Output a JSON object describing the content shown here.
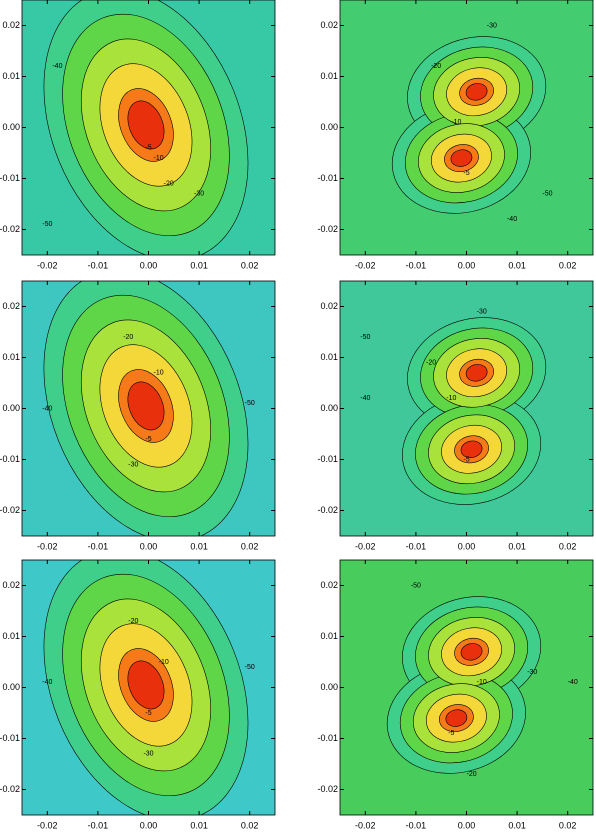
{
  "chart_data": [
    {
      "type": "contour",
      "xlim": [
        -0.025,
        0.025
      ],
      "ylim": [
        -0.025,
        0.025
      ],
      "xticks": [
        -0.02,
        -0.01,
        {
          "value": 0,
          "label": "0.00"
        },
        0.01,
        0.02
      ],
      "yticks": [
        -0.02,
        -0.01,
        {
          "value": 0,
          "label": "0.00"
        },
        0.01,
        0.02
      ],
      "levels": [
        -50,
        -40,
        -30,
        -20,
        -10,
        -5
      ],
      "colors": [
        "#3fcf8a",
        "#5fd648",
        "#a8e23a",
        "#f4d83a",
        "#f77a18",
        "#e8300c"
      ],
      "background": "#37c9a6",
      "peaks": [
        {
          "x": -0.0005,
          "y": 0.0005
        }
      ],
      "contour_labels": [
        {
          "x": 0,
          "y": -0.004,
          "value": -5
        },
        {
          "x": 0.002,
          "y": -0.006,
          "value": -10
        },
        {
          "x": 0.004,
          "y": -0.011,
          "value": -20
        },
        {
          "x": 0.01,
          "y": -0.013,
          "value": -30
        },
        {
          "x": -0.018,
          "y": 0.012,
          "value": -40
        },
        {
          "x": -0.02,
          "y": -0.019,
          "value": -50
        }
      ]
    },
    {
      "type": "contour",
      "xlim": [
        -0.025,
        0.025
      ],
      "ylim": [
        -0.025,
        0.025
      ],
      "xticks": [
        -0.02,
        -0.01,
        {
          "value": 0,
          "label": "0.00"
        },
        0.01,
        0.02
      ],
      "yticks": [
        -0.02,
        -0.01,
        {
          "value": 0,
          "label": "0.00"
        },
        0.01,
        0.02
      ],
      "levels": [
        -50,
        -40,
        -30,
        -20,
        -10,
        -5
      ],
      "colors": [
        "#3fcf8a",
        "#5fd648",
        "#a8e23a",
        "#f4d83a",
        "#f77a18",
        "#e8300c"
      ],
      "background": "#44cc70",
      "peaks": [
        {
          "x": 0.002,
          "y": 0.007
        },
        {
          "x": -0.001,
          "y": -0.006
        }
      ],
      "contour_labels": [
        {
          "x": 0,
          "y": -0.009,
          "value": -5
        },
        {
          "x": -0.002,
          "y": 0.001,
          "value": -10
        },
        {
          "x": -0.006,
          "y": 0.012,
          "value": -20
        },
        {
          "x": 0.005,
          "y": 0.02,
          "value": -30
        },
        {
          "x": 0.009,
          "y": -0.018,
          "value": -40
        },
        {
          "x": 0.016,
          "y": -0.013,
          "value": -50
        }
      ]
    },
    {
      "type": "contour",
      "xlim": [
        -0.025,
        0.025
      ],
      "ylim": [
        -0.025,
        0.025
      ],
      "xticks": [
        -0.02,
        -0.01,
        {
          "value": 0,
          "label": "0.00"
        },
        0.01,
        0.02
      ],
      "yticks": [
        -0.02,
        -0.01,
        {
          "value": 0,
          "label": "0.00"
        },
        0.01,
        0.02
      ],
      "levels": [
        -50,
        -40,
        -30,
        -20,
        -10,
        -5
      ],
      "colors": [
        "#3fcf8a",
        "#5fd648",
        "#a8e23a",
        "#f4d83a",
        "#f77a18",
        "#e8300c"
      ],
      "background": "#3ec6c0",
      "peaks": [
        {
          "x": -0.0005,
          "y": 0.0005
        }
      ],
      "contour_labels": [
        {
          "x": 0.002,
          "y": 0.007,
          "value": -10
        },
        {
          "x": -0.004,
          "y": 0.014,
          "value": -20
        },
        {
          "x": -0.003,
          "y": -0.011,
          "value": -30
        },
        {
          "x": -0.02,
          "y": 0,
          "value": -40
        },
        {
          "x": 0.02,
          "y": 0.001,
          "value": -50
        },
        {
          "x": 0,
          "y": -0.006,
          "value": -5
        }
      ]
    },
    {
      "type": "contour",
      "xlim": [
        -0.025,
        0.025
      ],
      "ylim": [
        -0.025,
        0.025
      ],
      "xticks": [
        -0.02,
        -0.01,
        {
          "value": 0,
          "label": "0.00"
        },
        0.01,
        0.02
      ],
      "yticks": [
        -0.02,
        -0.01,
        {
          "value": 0,
          "label": "0.00"
        },
        0.01,
        0.02
      ],
      "levels": [
        -50,
        -40,
        -30,
        -20,
        -10,
        -5
      ],
      "colors": [
        "#3fcf8a",
        "#5fd648",
        "#a8e23a",
        "#f4d83a",
        "#f77a18",
        "#e8300c"
      ],
      "background": "#40c89a",
      "peaks": [
        {
          "x": 0.002,
          "y": 0.007
        },
        {
          "x": 0.001,
          "y": -0.008
        }
      ],
      "contour_labels": [
        {
          "x": 0,
          "y": -0.01,
          "value": -5
        },
        {
          "x": -0.003,
          "y": 0.002,
          "value": -10
        },
        {
          "x": -0.007,
          "y": 0.009,
          "value": -20
        },
        {
          "x": 0.003,
          "y": 0.019,
          "value": -30
        },
        {
          "x": -0.02,
          "y": 0.002,
          "value": -40
        },
        {
          "x": -0.02,
          "y": 0.014,
          "value": -50
        }
      ]
    },
    {
      "type": "contour",
      "xlim": [
        -0.025,
        0.025
      ],
      "ylim": [
        -0.025,
        0.025
      ],
      "xticks": [
        -0.02,
        -0.01,
        {
          "value": 0,
          "label": "0.00"
        },
        0.01,
        0.02
      ],
      "yticks": [
        -0.02,
        -0.01,
        {
          "value": 0,
          "label": "0.00"
        },
        0.01,
        0.02
      ],
      "levels": [
        -50,
        -40,
        -30,
        -20,
        -10,
        -5
      ],
      "colors": [
        "#3fcf8a",
        "#5fd648",
        "#a8e23a",
        "#f4d83a",
        "#f77a18",
        "#e8300c"
      ],
      "background": "#3ec8c8",
      "peaks": [
        {
          "x": -0.0005,
          "y": 0.0005
        }
      ],
      "contour_labels": [
        {
          "x": 0.003,
          "y": 0.005,
          "value": -10
        },
        {
          "x": -0.003,
          "y": 0.013,
          "value": -20
        },
        {
          "x": 0,
          "y": -0.013,
          "value": -30
        },
        {
          "x": -0.02,
          "y": 0.001,
          "value": -40
        },
        {
          "x": 0.02,
          "y": 0.004,
          "value": -50
        },
        {
          "x": 0,
          "y": -0.005,
          "value": -5
        }
      ]
    },
    {
      "type": "contour",
      "xlim": [
        -0.025,
        0.025
      ],
      "ylim": [
        -0.025,
        0.025
      ],
      "xticks": [
        -0.02,
        -0.01,
        {
          "value": 0,
          "label": "0.00"
        },
        0.01,
        0.02
      ],
      "yticks": [
        -0.02,
        -0.01,
        {
          "value": 0,
          "label": "0.00"
        },
        0.01,
        0.02
      ],
      "levels": [
        -50,
        -40,
        -30,
        -20,
        -10,
        -5
      ],
      "colors": [
        "#3fcf8a",
        "#5fd648",
        "#a8e23a",
        "#f4d83a",
        "#f77a18",
        "#e8300c"
      ],
      "background": "#48cc5c",
      "peaks": [
        {
          "x": 0.001,
          "y": 0.007
        },
        {
          "x": -0.002,
          "y": -0.006
        }
      ],
      "contour_labels": [
        {
          "x": 0.003,
          "y": 0.001,
          "value": -10
        },
        {
          "x": -0.003,
          "y": -0.009,
          "value": -5
        },
        {
          "x": 0.001,
          "y": -0.017,
          "value": -20
        },
        {
          "x": 0.013,
          "y": 0.003,
          "value": -30
        },
        {
          "x": 0.021,
          "y": 0.001,
          "value": -40
        },
        {
          "x": -0.01,
          "y": 0.02,
          "value": -50
        }
      ]
    }
  ]
}
